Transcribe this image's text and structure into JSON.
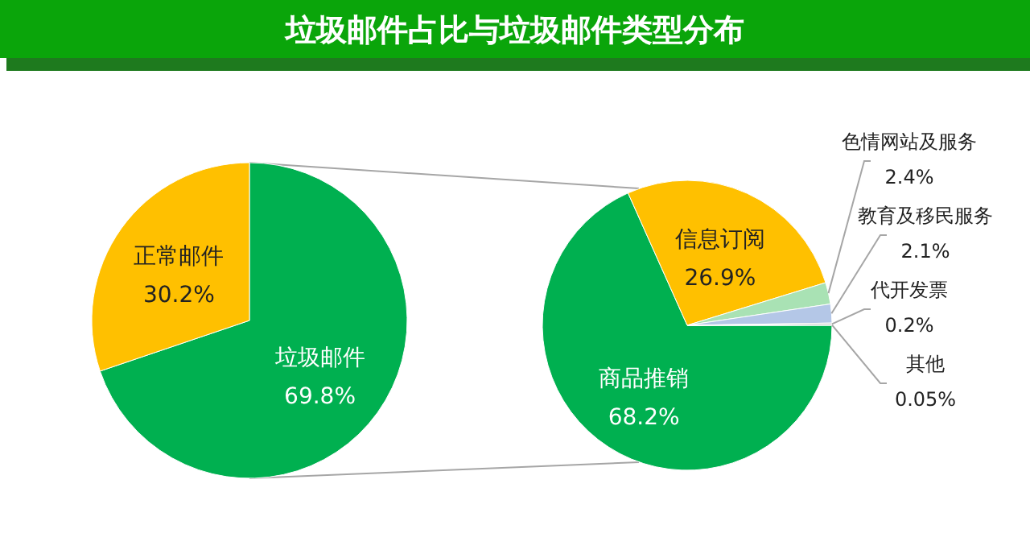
{
  "chart_data": [
    {
      "type": "pie",
      "title": "垃圾邮件占比与垃圾邮件类型分布",
      "categories": [
        "垃圾邮件",
        "正常邮件"
      ],
      "values": [
        69.8,
        30.2
      ],
      "colors": [
        "#00b050",
        "#ffc000"
      ],
      "value_labels": [
        "69.8%",
        "30.2%"
      ]
    },
    {
      "type": "pie",
      "categories": [
        "商品推销",
        "信息订阅",
        "色情网站及服务",
        "教育及移民服务",
        "代开发票",
        "其他"
      ],
      "values": [
        68.2,
        26.9,
        2.4,
        2.1,
        0.2,
        0.05
      ],
      "colors": [
        "#00b050",
        "#ffc000",
        "#a9e2b4",
        "#b4c7e7",
        "#c9c9c9",
        "#e0e0e0"
      ],
      "value_labels": [
        "68.2%",
        "26.9%",
        "2.4%",
        "2.1%",
        "0.2%",
        "0.05%"
      ]
    }
  ]
}
